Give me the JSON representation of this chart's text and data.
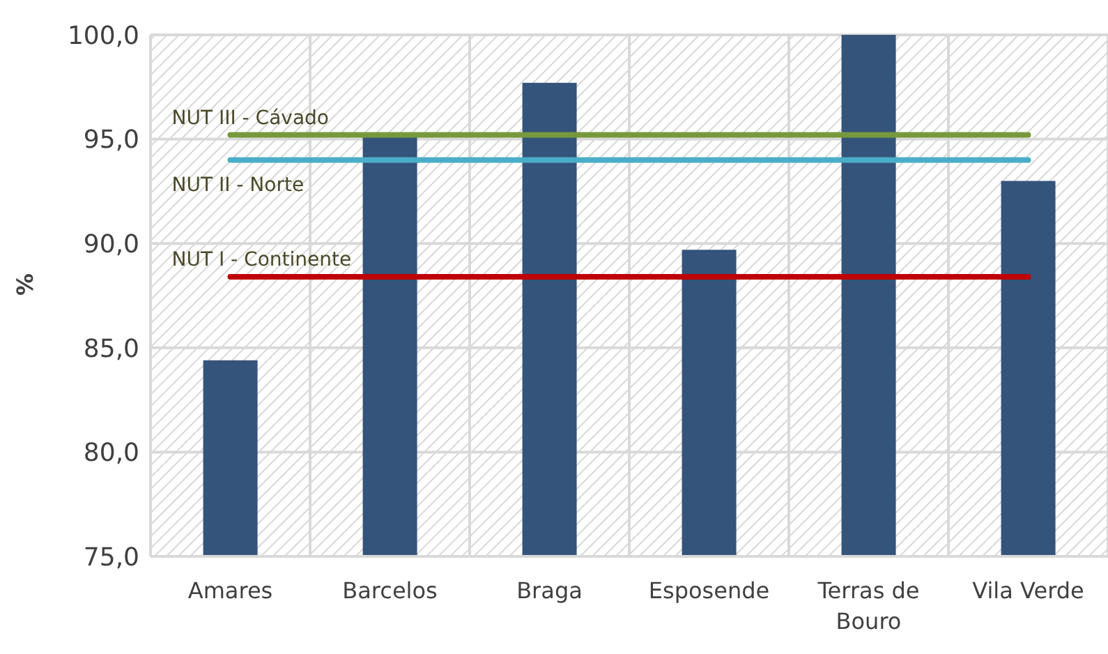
{
  "chart_data": {
    "type": "bar",
    "ylabel": "%",
    "categories": [
      "Amares",
      "Barcelos",
      "Braga",
      "Esposende",
      "Terras de Bouro",
      "Vila Verde"
    ],
    "values": [
      84.4,
      95.1,
      97.7,
      89.7,
      100.0,
      93.0
    ],
    "color": "#34547c",
    "ylim": [
      75,
      100
    ],
    "yticks": [
      {
        "value": 75,
        "label": "75,0"
      },
      {
        "value": 80,
        "label": "80,0"
      },
      {
        "value": 85,
        "label": "85,0"
      },
      {
        "value": 90,
        "label": "90,0"
      },
      {
        "value": 95,
        "label": "95,0"
      },
      {
        "value": 100,
        "label": "100,0"
      }
    ],
    "grid": true,
    "ref_lines": [
      {
        "axis": "y",
        "value": 95.2,
        "label": "NUT III - Cávado",
        "color": "#77993c"
      },
      {
        "axis": "y",
        "value": 94.0,
        "label": "NUT II - Norte",
        "color": "#4aaec8"
      },
      {
        "axis": "y",
        "value": 88.4,
        "label": "NUT I - Continente",
        "color": "#c00000"
      }
    ]
  }
}
